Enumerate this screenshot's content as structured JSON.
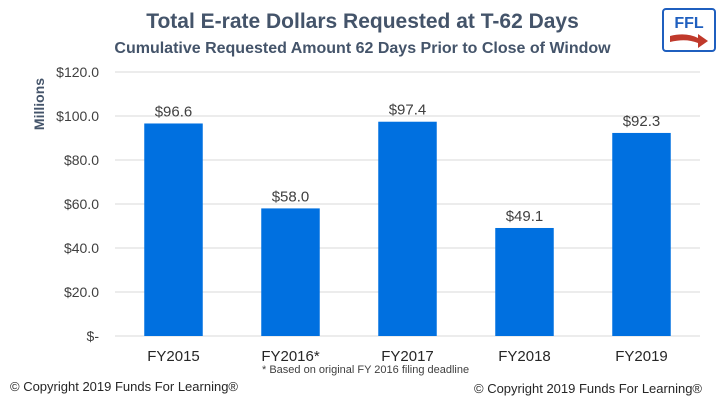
{
  "chart_data": {
    "type": "bar",
    "title": "Total E-rate Dollars Requested at T-62 Days",
    "subtitle": "Cumulative Requested Amount 62 Days Prior to Close of Window",
    "ylabel": "Millions",
    "xlabel": "",
    "categories": [
      "FY2015",
      "FY2016*",
      "FY2017",
      "FY2018",
      "FY2019"
    ],
    "values": [
      96.6,
      58.0,
      97.4,
      49.1,
      92.3
    ],
    "data_labels": [
      "$96.6",
      "$58.0",
      "$97.4",
      "$49.1",
      "$92.3"
    ],
    "ylim": [
      0,
      120
    ],
    "yticks": [
      0,
      20,
      40,
      60,
      80,
      100,
      120
    ],
    "ytick_labels": [
      "$-",
      "$20.0",
      "$40.0",
      "$60.0",
      "$80.0",
      "$100.0",
      "$120.0"
    ],
    "grid": true,
    "bar_color": "#0070e0",
    "footnote": "* Based on original FY 2016 filing deadline"
  },
  "logo": {
    "text": "FFL",
    "color": "#1f5fbf",
    "arrow_color": "#c0392b"
  },
  "copyright": {
    "left": "© Copyright 2019 Funds For Learning®",
    "right": "© Copyright 2019 Funds For Learning®"
  }
}
